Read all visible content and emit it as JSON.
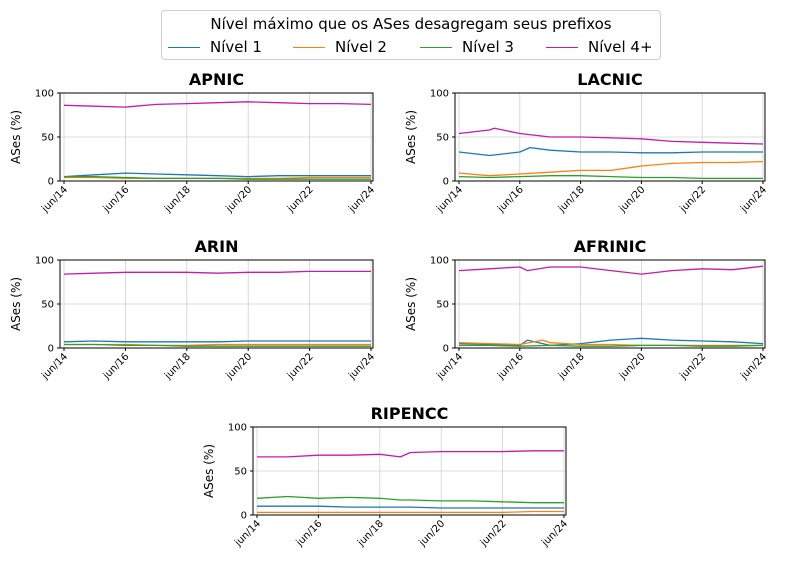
{
  "legend": {
    "title": "Nível máximo que os ASes desagregam seus prefixos",
    "placement": "top-center",
    "items": [
      {
        "label": "Nível 1",
        "color": "#1f77b4"
      },
      {
        "label": "Nível 2",
        "color": "#ff7f0e"
      },
      {
        "label": "Nível 3",
        "color": "#2ca02c"
      },
      {
        "label": "Nível 4+",
        "color": "#c51ba7"
      }
    ]
  },
  "chart_data": [
    {
      "type": "line",
      "title": "APNIC",
      "ylabel": "ASes (%)",
      "xlabel": "",
      "ylim": [
        0,
        100
      ],
      "yticks": [
        0,
        50,
        100
      ],
      "xrange": [
        "2014-06",
        "2024-06"
      ],
      "xticks": [
        "jun/14",
        "jun/16",
        "jun/18",
        "jun/20",
        "jun/22",
        "jun/24"
      ],
      "grid": true,
      "series": [
        {
          "name": "Nível 1",
          "x": [
            "2014-06",
            "2015-06",
            "2016-06",
            "2017-06",
            "2018-06",
            "2019-06",
            "2020-06",
            "2021-06",
            "2022-06",
            "2023-06",
            "2024-06"
          ],
          "values": [
            5,
            7,
            9,
            8,
            7,
            6,
            5,
            6,
            6,
            6,
            6
          ]
        },
        {
          "name": "Nível 2",
          "x": [
            "2014-06",
            "2015-06",
            "2016-06",
            "2017-06",
            "2018-06",
            "2019-06",
            "2020-06",
            "2021-06",
            "2022-06",
            "2023-06",
            "2024-06"
          ],
          "values": [
            4,
            4,
            3,
            3,
            3,
            3,
            3,
            3,
            4,
            4,
            4
          ]
        },
        {
          "name": "Nível 3",
          "x": [
            "2014-06",
            "2015-06",
            "2016-06",
            "2017-06",
            "2018-06",
            "2019-06",
            "2020-06",
            "2021-06",
            "2022-06",
            "2023-06",
            "2024-06"
          ],
          "values": [
            5,
            5,
            4,
            3,
            3,
            3,
            2,
            2,
            2,
            2,
            2
          ]
        },
        {
          "name": "Nível 4+",
          "x": [
            "2014-06",
            "2015-06",
            "2016-06",
            "2017-06",
            "2018-06",
            "2019-06",
            "2020-06",
            "2021-06",
            "2022-06",
            "2023-06",
            "2024-06"
          ],
          "values": [
            86,
            85,
            84,
            87,
            88,
            89,
            90,
            89,
            88,
            88,
            87
          ]
        }
      ]
    },
    {
      "type": "line",
      "title": "LACNIC",
      "ylabel": "ASes (%)",
      "xlabel": "",
      "ylim": [
        0,
        100
      ],
      "yticks": [
        0,
        50,
        100
      ],
      "xrange": [
        "2014-06",
        "2024-06"
      ],
      "xticks": [
        "jun/14",
        "jun/16",
        "jun/18",
        "jun/20",
        "jun/22",
        "jun/24"
      ],
      "grid": true,
      "series": [
        {
          "name": "Nível 1",
          "x": [
            "2014-06",
            "2015-06",
            "2016-06",
            "2016-10",
            "2017-06",
            "2018-06",
            "2019-06",
            "2020-06",
            "2021-06",
            "2022-06",
            "2023-06",
            "2024-06"
          ],
          "values": [
            33,
            29,
            33,
            38,
            35,
            33,
            33,
            32,
            32,
            33,
            33,
            33
          ]
        },
        {
          "name": "Nível 2",
          "x": [
            "2014-06",
            "2015-06",
            "2016-06",
            "2017-06",
            "2018-06",
            "2019-06",
            "2020-06",
            "2021-06",
            "2022-06",
            "2023-06",
            "2024-06"
          ],
          "values": [
            9,
            6,
            8,
            10,
            12,
            12,
            17,
            20,
            21,
            21,
            22
          ]
        },
        {
          "name": "Nível 3",
          "x": [
            "2014-06",
            "2015-06",
            "2016-06",
            "2017-06",
            "2018-06",
            "2019-06",
            "2020-06",
            "2021-06",
            "2022-06",
            "2023-06",
            "2024-06"
          ],
          "values": [
            5,
            4,
            5,
            6,
            6,
            5,
            4,
            4,
            3,
            3,
            3
          ]
        },
        {
          "name": "Nível 4+",
          "x": [
            "2014-06",
            "2015-06",
            "2015-08",
            "2016-06",
            "2017-06",
            "2018-06",
            "2019-06",
            "2020-06",
            "2021-06",
            "2022-06",
            "2023-06",
            "2024-06"
          ],
          "values": [
            54,
            58,
            60,
            54,
            50,
            50,
            49,
            48,
            45,
            44,
            43,
            42
          ]
        }
      ]
    },
    {
      "type": "line",
      "title": "ARIN",
      "ylabel": "ASes (%)",
      "xlabel": "",
      "ylim": [
        0,
        100
      ],
      "yticks": [
        0,
        50,
        100
      ],
      "xrange": [
        "2014-06",
        "2024-06"
      ],
      "xticks": [
        "jun/14",
        "jun/16",
        "jun/18",
        "jun/20",
        "jun/22",
        "jun/24"
      ],
      "grid": true,
      "series": [
        {
          "name": "Nível 1",
          "x": [
            "2014-06",
            "2015-06",
            "2016-06",
            "2017-06",
            "2018-06",
            "2019-06",
            "2020-06",
            "2021-06",
            "2022-06",
            "2023-06",
            "2024-06"
          ],
          "values": [
            7,
            8,
            7,
            7,
            7,
            7,
            8,
            8,
            8,
            8,
            8
          ]
        },
        {
          "name": "Nível 2",
          "x": [
            "2014-06",
            "2015-06",
            "2016-06",
            "2017-06",
            "2018-06",
            "2019-06",
            "2020-06",
            "2021-06",
            "2022-06",
            "2023-06",
            "2024-06"
          ],
          "values": [
            4,
            4,
            4,
            3,
            3,
            4,
            4,
            4,
            4,
            4,
            4
          ]
        },
        {
          "name": "Nível 3",
          "x": [
            "2014-06",
            "2015-06",
            "2016-06",
            "2017-06",
            "2018-06",
            "2019-06",
            "2020-06",
            "2021-06",
            "2022-06",
            "2023-06",
            "2024-06"
          ],
          "values": [
            4,
            4,
            3,
            3,
            2,
            2,
            2,
            2,
            2,
            2,
            2
          ]
        },
        {
          "name": "Nível 4+",
          "x": [
            "2014-06",
            "2015-06",
            "2016-06",
            "2017-06",
            "2018-06",
            "2019-06",
            "2020-06",
            "2021-06",
            "2022-06",
            "2023-06",
            "2024-06"
          ],
          "values": [
            84,
            85,
            86,
            86,
            86,
            85,
            86,
            86,
            87,
            87,
            87
          ]
        }
      ]
    },
    {
      "type": "line",
      "title": "AFRINIC",
      "ylabel": "ASes (%)",
      "xlabel": "",
      "ylim": [
        0,
        100
      ],
      "yticks": [
        0,
        50,
        100
      ],
      "xrange": [
        "2014-06",
        "2024-06"
      ],
      "xticks": [
        "jun/14",
        "jun/16",
        "jun/18",
        "jun/20",
        "jun/22",
        "jun/24"
      ],
      "grid": true,
      "series": [
        {
          "name": "Nível 1",
          "x": [
            "2014-06",
            "2015-06",
            "2016-06",
            "2016-09",
            "2017-06",
            "2018-06",
            "2019-06",
            "2020-06",
            "2021-06",
            "2022-06",
            "2023-06",
            "2024-06"
          ],
          "values": [
            5,
            4,
            3,
            9,
            3,
            5,
            9,
            11,
            9,
            8,
            7,
            5
          ]
        },
        {
          "name": "Nível 2",
          "x": [
            "2014-06",
            "2015-06",
            "2016-06",
            "2017-03",
            "2017-06",
            "2018-06",
            "2019-06",
            "2020-06",
            "2021-06",
            "2022-06",
            "2023-06",
            "2024-06"
          ],
          "values": [
            6,
            5,
            4,
            9,
            6,
            4,
            4,
            3,
            3,
            3,
            3,
            3
          ]
        },
        {
          "name": "Nível 3",
          "x": [
            "2014-06",
            "2015-06",
            "2016-06",
            "2017-06",
            "2018-06",
            "2019-06",
            "2020-06",
            "2021-06",
            "2022-06",
            "2023-06",
            "2024-06"
          ],
          "values": [
            3,
            3,
            2,
            3,
            2,
            2,
            3,
            3,
            2,
            2,
            3
          ]
        },
        {
          "name": "Nível 4+",
          "x": [
            "2014-06",
            "2015-06",
            "2016-06",
            "2016-09",
            "2017-06",
            "2018-06",
            "2019-06",
            "2020-06",
            "2021-06",
            "2022-06",
            "2023-06",
            "2024-06"
          ],
          "values": [
            88,
            90,
            92,
            88,
            92,
            92,
            88,
            84,
            88,
            90,
            89,
            93
          ]
        }
      ]
    },
    {
      "type": "line",
      "title": "RIPENCC",
      "ylabel": "ASes (%)",
      "xlabel": "",
      "ylim": [
        0,
        100
      ],
      "yticks": [
        0,
        50,
        100
      ],
      "xrange": [
        "2014-06",
        "2024-06"
      ],
      "xticks": [
        "jun/14",
        "jun/16",
        "jun/18",
        "jun/20",
        "jun/22",
        "jun/24"
      ],
      "grid": true,
      "series": [
        {
          "name": "Nível 1",
          "x": [
            "2014-06",
            "2015-06",
            "2016-06",
            "2017-06",
            "2018-06",
            "2019-06",
            "2020-06",
            "2021-06",
            "2022-06",
            "2023-06",
            "2024-06"
          ],
          "values": [
            10,
            10,
            10,
            9,
            9,
            9,
            8,
            8,
            8,
            8,
            8
          ]
        },
        {
          "name": "Nível 2",
          "x": [
            "2014-06",
            "2015-06",
            "2016-06",
            "2017-06",
            "2018-06",
            "2019-06",
            "2020-06",
            "2021-06",
            "2022-06",
            "2023-06",
            "2024-06"
          ],
          "values": [
            3,
            3,
            3,
            3,
            3,
            3,
            3,
            3,
            3,
            4,
            4
          ]
        },
        {
          "name": "Nível 3",
          "x": [
            "2014-06",
            "2015-06",
            "2016-06",
            "2017-06",
            "2018-06",
            "2019-02",
            "2019-06",
            "2020-06",
            "2021-06",
            "2022-06",
            "2023-06",
            "2024-06"
          ],
          "values": [
            19,
            21,
            19,
            20,
            19,
            17,
            17,
            16,
            16,
            15,
            14,
            14
          ]
        },
        {
          "name": "Nível 4+",
          "x": [
            "2014-06",
            "2015-06",
            "2016-06",
            "2017-06",
            "2018-06",
            "2019-02",
            "2019-06",
            "2020-06",
            "2021-06",
            "2022-06",
            "2023-06",
            "2024-06"
          ],
          "values": [
            66,
            66,
            68,
            68,
            69,
            66,
            71,
            72,
            72,
            72,
            73,
            73
          ]
        }
      ]
    }
  ]
}
